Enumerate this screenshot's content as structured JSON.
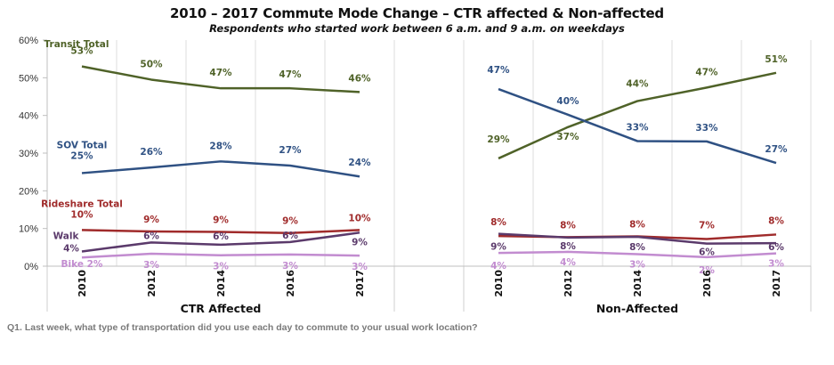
{
  "chart_data": {
    "type": "line",
    "title": "2010 – 2017 Commute Mode Change – CTR affected & Non-affected",
    "subtitle": "Respondents who started work between 6 a.m. and 9 a.m. on weekdays",
    "xlabel": "",
    "ylabel": "",
    "ylim": [
      0,
      60
    ],
    "yticks": [
      "0%",
      "10%",
      "20%",
      "30%",
      "40%",
      "50%",
      "60%"
    ],
    "grid": "vertical",
    "legend": "inline-labels",
    "groups": [
      {
        "name": "CTR Affected",
        "categories": [
          "2010",
          "2012",
          "2014",
          "2016",
          "2017"
        ],
        "series": [
          {
            "name": "Transit Total",
            "color": "#4f6228",
            "values": [
              53,
              49.5,
              47.2,
              47.2,
              46.2
            ],
            "labels": [
              "53%",
              "50%",
              "47%",
              "47%",
              "46%"
            ]
          },
          {
            "name": "SOV Total",
            "color": "#2f5183",
            "values": [
              24.7,
              26.2,
              27.8,
              26.7,
              23.8
            ],
            "labels": [
              "25%",
              "26%",
              "28%",
              "27%",
              "24%"
            ]
          },
          {
            "name": "Rideshare Total",
            "color": "#a02b2b",
            "values": [
              9.6,
              9.2,
              9.1,
              8.8,
              9.6
            ],
            "labels": [
              "10%",
              "9%",
              "9%",
              "9%",
              "10%"
            ]
          },
          {
            "name": "Walk",
            "color": "#5b3a6b",
            "values": [
              3.9,
              6.3,
              5.7,
              6.4,
              8.9
            ],
            "labels": [
              "4%",
              "6%",
              "6%",
              "6%",
              "9%"
            ]
          },
          {
            "name": "Bike",
            "color": "#c28cd0",
            "values": [
              2.3,
              3.3,
              2.9,
              3.1,
              2.8
            ],
            "labels": [
              "2%",
              "3%",
              "3%",
              "3%",
              "3%"
            ]
          }
        ]
      },
      {
        "name": "Non-Affected",
        "categories": [
          "2010",
          "2012",
          "2014",
          "2016",
          "2017"
        ],
        "series": [
          {
            "name": "Transit Total",
            "color": "#4f6228",
            "values": [
              28.6,
              36.9,
              43.8,
              47.4,
              51.3
            ],
            "labels": [
              "29%",
              "37%",
              "44%",
              "47%",
              "51%"
            ]
          },
          {
            "name": "SOV Total",
            "color": "#2f5183",
            "values": [
              47.0,
              40.2,
              33.2,
              33.1,
              27.4
            ],
            "labels": [
              "47%",
              "40%",
              "33%",
              "33%",
              "27%"
            ]
          },
          {
            "name": "Rideshare Total",
            "color": "#a02b2b",
            "values": [
              8.0,
              7.7,
              7.9,
              7.2,
              8.4
            ],
            "labels": [
              "8%",
              "8%",
              "8%",
              "7%",
              "8%"
            ]
          },
          {
            "name": "Walk",
            "color": "#5b3a6b",
            "values": [
              8.6,
              7.6,
              7.8,
              6.0,
              6.1
            ],
            "labels": [
              "9%",
              "8%",
              "8%",
              "6%",
              "6%"
            ]
          },
          {
            "name": "Bike",
            "color": "#c28cd0",
            "values": [
              3.5,
              3.8,
              3.2,
              2.4,
              3.4
            ],
            "labels": [
              "4%",
              "4%",
              "3%",
              "2%",
              "3%"
            ]
          }
        ]
      }
    ]
  },
  "inline_series_labels": {
    "transit": "Transit Total",
    "sov": "SOV Total",
    "rideshare": "Rideshare Total",
    "walk": "Walk",
    "bike": "Bike 2%"
  },
  "footnote": "Q1. Last week, what type of transportation did you use each day to commute to your usual work location?"
}
